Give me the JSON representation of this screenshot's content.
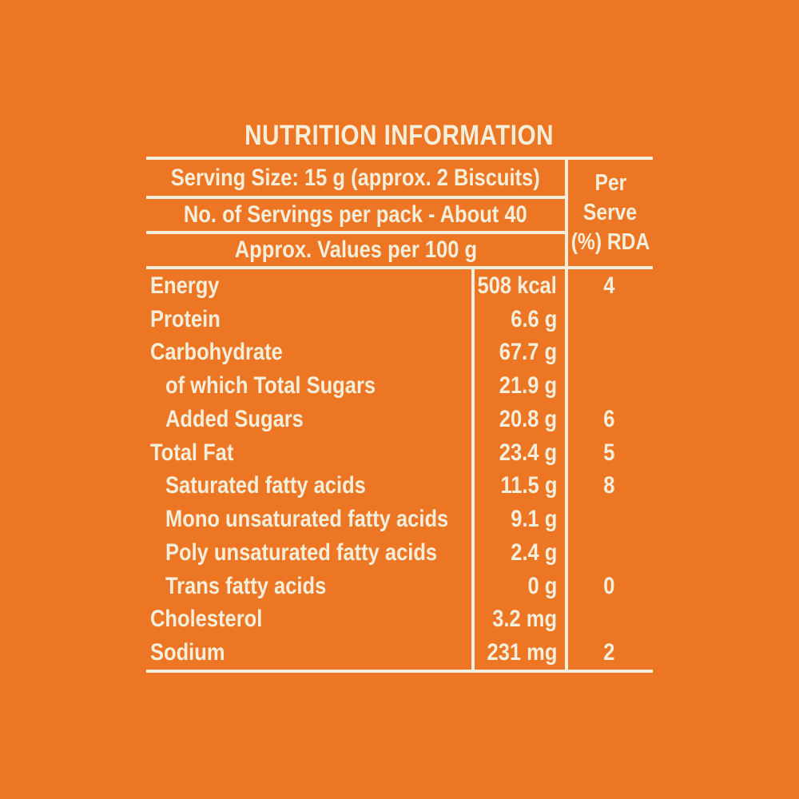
{
  "colors": {
    "background": "#EC7623",
    "foreground": "#F5EEDA"
  },
  "title": "NUTRITION INFORMATION",
  "header": {
    "serving_size": "Serving Size: 15 g (approx. 2 Biscuits)",
    "servings_per_pack": "No. of Servings per pack - About 40",
    "approx_values": "Approx. Values per 100 g",
    "per_serve": [
      "Per",
      "Serve",
      "(%) RDA"
    ]
  },
  "rows": [
    {
      "name": "Energy",
      "value": "508 kcal",
      "rda": "4",
      "indent": false
    },
    {
      "name": "Protein",
      "value": "6.6 g",
      "rda": "",
      "indent": false
    },
    {
      "name": "Carbohydrate",
      "value": "67.7 g",
      "rda": "",
      "indent": false
    },
    {
      "name": "of which Total Sugars",
      "value": "21.9 g",
      "rda": "",
      "indent": true
    },
    {
      "name": "Added Sugars",
      "value": "20.8 g",
      "rda": "6",
      "indent": true
    },
    {
      "name": "Total Fat",
      "value": "23.4 g",
      "rda": "5",
      "indent": false
    },
    {
      "name": "Saturated fatty acids",
      "value": "11.5 g",
      "rda": "8",
      "indent": true
    },
    {
      "name": "Mono unsaturated fatty acids",
      "value": "9.1 g",
      "rda": "",
      "indent": true
    },
    {
      "name": "Poly unsaturated fatty acids",
      "value": "2.4 g",
      "rda": "",
      "indent": true
    },
    {
      "name": "Trans fatty acids",
      "value": "0 g",
      "rda": "0",
      "indent": true
    },
    {
      "name": "Cholesterol",
      "value": "3.2 mg",
      "rda": "",
      "indent": false
    },
    {
      "name": "Sodium",
      "value": "231 mg",
      "rda": "2",
      "indent": false
    }
  ]
}
